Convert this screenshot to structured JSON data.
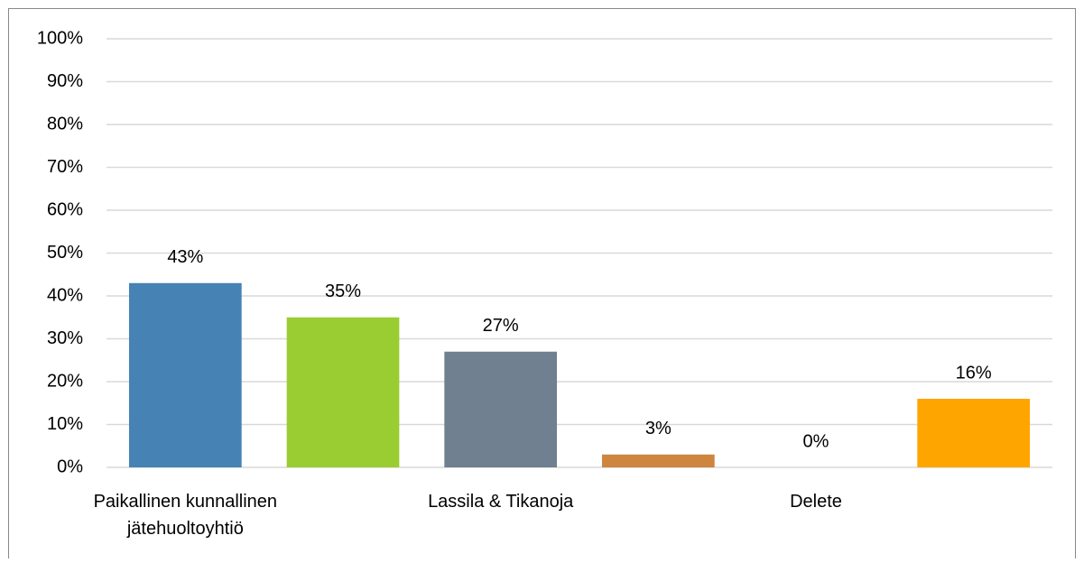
{
  "chart_data": {
    "type": "bar",
    "categories": [
      "Paikallinen kunnallinen jätehuoltoyhtiö",
      null,
      "Lassila & Tikanoja",
      null,
      "Delete",
      null
    ],
    "values": [
      43,
      35,
      27,
      3,
      0,
      16
    ],
    "value_labels": [
      "43%",
      "35%",
      "27%",
      "3%",
      "0%",
      "16%"
    ],
    "colors": [
      "#4682b4",
      "#9acd32",
      "#708090",
      "#cd853f",
      "#4682b4",
      "#ffa500"
    ],
    "ylim": [
      0,
      100
    ],
    "yticks": [
      {
        "value": 0,
        "label": "0%"
      },
      {
        "value": 10,
        "label": "10%"
      },
      {
        "value": 20,
        "label": "20%"
      },
      {
        "value": 30,
        "label": "30%"
      },
      {
        "value": 40,
        "label": "40%"
      },
      {
        "value": 50,
        "label": "50%"
      },
      {
        "value": 60,
        "label": "60%"
      },
      {
        "value": 70,
        "label": "70%"
      },
      {
        "value": 80,
        "label": "80%"
      },
      {
        "value": 90,
        "label": "90%"
      },
      {
        "value": 100,
        "label": "100%"
      }
    ],
    "grid": true
  }
}
